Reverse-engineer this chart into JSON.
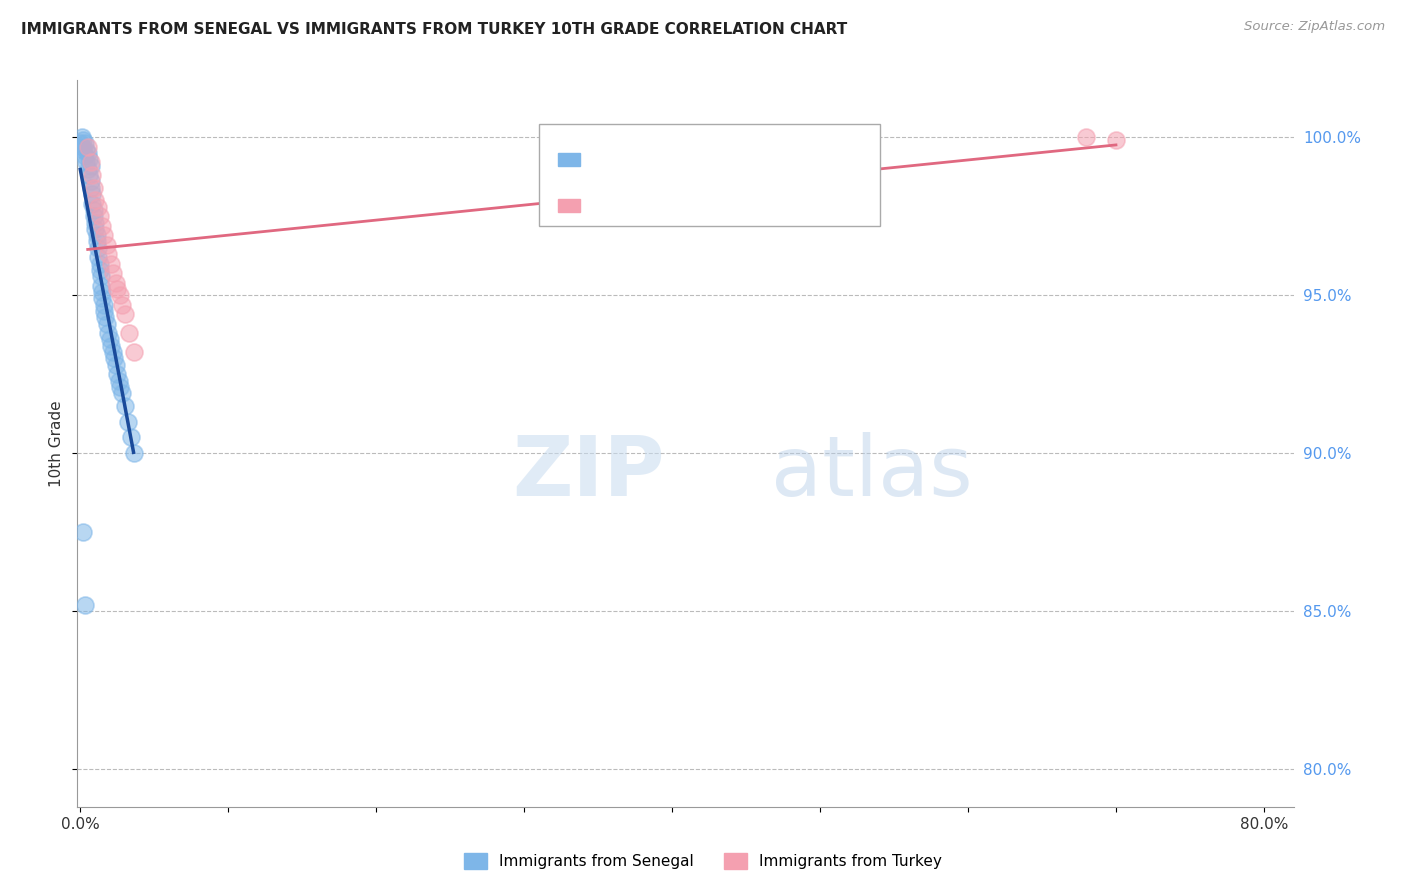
{
  "title": "IMMIGRANTS FROM SENEGAL VS IMMIGRANTS FROM TURKEY 10TH GRADE CORRELATION CHART",
  "source": "Source: ZipAtlas.com",
  "ylabel": "10th Grade",
  "xlim": [
    -0.002,
    0.82
  ],
  "ylim": [
    0.788,
    1.018
  ],
  "y_ticks": [
    0.8,
    0.85,
    0.9,
    0.95,
    1.0
  ],
  "y_tick_labels_right": [
    "80.0%",
    "85.0%",
    "90.0%",
    "95.0%",
    "100.0%"
  ],
  "color_senegal": "#7EB6E8",
  "color_turkey": "#F4A0B0",
  "color_senegal_line": "#1A4A9A",
  "color_turkey_line": "#E06880",
  "color_right_axis": "#5599EE",
  "senegal_x": [
    0.0,
    0.001,
    0.001,
    0.002,
    0.002,
    0.003,
    0.003,
    0.004,
    0.004,
    0.005,
    0.005,
    0.006,
    0.006,
    0.007,
    0.007,
    0.007,
    0.008,
    0.008,
    0.009,
    0.009,
    0.01,
    0.01,
    0.011,
    0.011,
    0.012,
    0.012,
    0.013,
    0.013,
    0.014,
    0.014,
    0.015,
    0.015,
    0.016,
    0.016,
    0.017,
    0.018,
    0.019,
    0.02,
    0.021,
    0.022,
    0.023,
    0.024,
    0.025,
    0.026,
    0.027,
    0.028,
    0.03,
    0.032,
    0.034,
    0.036,
    0.002,
    0.003
  ],
  "senegal_y": [
    0.998,
    1.0,
    0.997,
    0.999,
    0.996,
    0.998,
    0.994,
    0.996,
    0.992,
    0.995,
    0.99,
    0.993,
    0.988,
    0.991,
    0.986,
    0.984,
    0.982,
    0.979,
    0.977,
    0.975,
    0.973,
    0.971,
    0.969,
    0.967,
    0.965,
    0.962,
    0.96,
    0.958,
    0.956,
    0.953,
    0.951,
    0.949,
    0.947,
    0.945,
    0.943,
    0.941,
    0.938,
    0.936,
    0.934,
    0.932,
    0.93,
    0.928,
    0.925,
    0.923,
    0.921,
    0.919,
    0.915,
    0.91,
    0.905,
    0.9,
    0.875,
    0.852
  ],
  "turkey_x": [
    0.005,
    0.007,
    0.008,
    0.009,
    0.01,
    0.012,
    0.013,
    0.015,
    0.016,
    0.018,
    0.019,
    0.021,
    0.022,
    0.024,
    0.025,
    0.027,
    0.028,
    0.03,
    0.033,
    0.036,
    0.68,
    0.7
  ],
  "turkey_y": [
    0.997,
    0.992,
    0.988,
    0.984,
    0.98,
    0.978,
    0.975,
    0.972,
    0.969,
    0.966,
    0.963,
    0.96,
    0.957,
    0.954,
    0.952,
    0.95,
    0.947,
    0.944,
    0.938,
    0.932,
    1.0,
    0.999
  ]
}
